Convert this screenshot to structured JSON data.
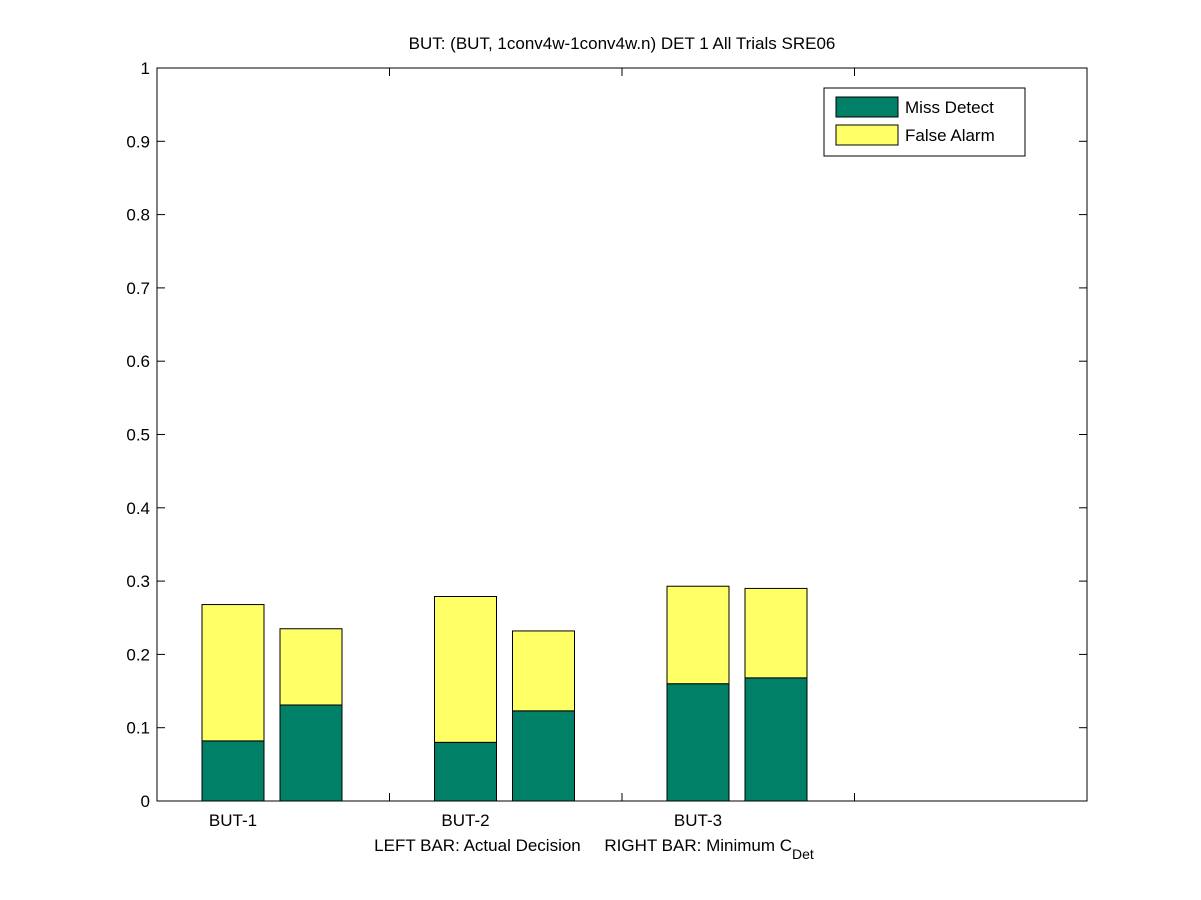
{
  "chart_data": {
    "type": "bar",
    "stacked": true,
    "title": "BUT: (BUT, 1conv4w-1conv4w.n) DET 1 All Trials SRE06",
    "xlabel": "LEFT BAR: Actual Decision     RIGHT BAR: Minimum C",
    "xlabel_subscript": "Det",
    "ylabel": "",
    "ylim": [
      0,
      1
    ],
    "yticks": [
      "0",
      "0.1",
      "0.2",
      "0.3",
      "0.4",
      "0.5",
      "0.6",
      "0.7",
      "0.8",
      "0.9",
      "1"
    ],
    "categories": [
      "BUT-1",
      "BUT-2",
      "BUT-3"
    ],
    "bars_per_category": [
      "Actual Decision",
      "Minimum C_Det"
    ],
    "series": [
      {
        "name": "Miss Detect",
        "color": "#008066",
        "values": [
          [
            0.082,
            0.131
          ],
          [
            0.08,
            0.123
          ],
          [
            0.16,
            0.168
          ]
        ]
      },
      {
        "name": "False Alarm",
        "color": "#ffff66",
        "values": [
          [
            0.186,
            0.104
          ],
          [
            0.199,
            0.109
          ],
          [
            0.133,
            0.122
          ]
        ]
      }
    ],
    "legend_position": "top-right",
    "grid": false
  }
}
